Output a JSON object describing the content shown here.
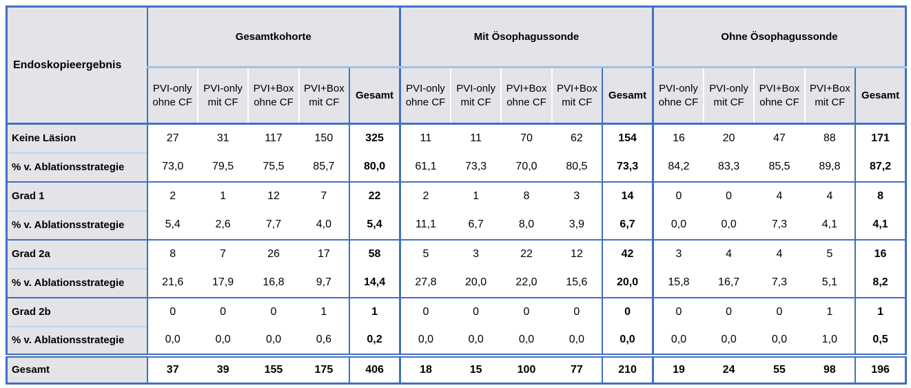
{
  "table": {
    "corner_label": "Endoskopieergebnis",
    "groups": [
      {
        "label": "Gesamtkohorte"
      },
      {
        "label": "Mit Ösophagussonde"
      },
      {
        "label": "Ohne Ösophagussonde"
      }
    ],
    "sub_headers": [
      "PVI-only ohne CF",
      "PVI-only mit CF",
      "PVI+Box ohne CF",
      "PVI+Box mit CF",
      "Gesamt"
    ],
    "rows": [
      {
        "label": "Keine Läsion",
        "type": "count",
        "values": [
          "27",
          "31",
          "117",
          "150",
          "325",
          "11",
          "11",
          "70",
          "62",
          "154",
          "16",
          "20",
          "47",
          "88",
          "171"
        ]
      },
      {
        "label": "% v. Ablationsstrategie",
        "type": "percent",
        "values": [
          "73,0",
          "79,5",
          "75,5",
          "85,7",
          "80,0",
          "61,1",
          "73,3",
          "70,0",
          "80,5",
          "73,3",
          "84,2",
          "83,3",
          "85,5",
          "89,8",
          "87,2"
        ]
      },
      {
        "label": "Grad 1",
        "type": "count",
        "values": [
          "2",
          "1",
          "12",
          "7",
          "22",
          "2",
          "1",
          "8",
          "3",
          "14",
          "0",
          "0",
          "4",
          "4",
          "8"
        ]
      },
      {
        "label": "% v. Ablationsstrategie",
        "type": "percent",
        "values": [
          "5,4",
          "2,6",
          "7,7",
          "4,0",
          "5,4",
          "11,1",
          "6,7",
          "8,0",
          "3,9",
          "6,7",
          "0,0",
          "0,0",
          "7,3",
          "4,1",
          "4,1"
        ]
      },
      {
        "label": "Grad 2a",
        "type": "count",
        "values": [
          "8",
          "7",
          "26",
          "17",
          "58",
          "5",
          "3",
          "22",
          "12",
          "42",
          "3",
          "4",
          "4",
          "5",
          "16"
        ]
      },
      {
        "label": "% v. Ablationsstrategie",
        "type": "percent",
        "values": [
          "21,6",
          "17,9",
          "16,8",
          "9,7",
          "14,4",
          "27,8",
          "20,0",
          "22,0",
          "15,6",
          "20,0",
          "15,8",
          "16,7",
          "7,3",
          "5,1",
          "8,2"
        ]
      },
      {
        "label": "Grad 2b",
        "type": "count",
        "values": [
          "0",
          "0",
          "0",
          "1",
          "1",
          "0",
          "0",
          "0",
          "0",
          "0",
          "0",
          "0",
          "0",
          "1",
          "1"
        ]
      },
      {
        "label": "% v. Ablationsstrategie",
        "type": "percent",
        "values": [
          "0,0",
          "0,0",
          "0,0",
          "0,6",
          "0,2",
          "0,0",
          "0,0",
          "0,0",
          "0,0",
          "0,0",
          "0,0",
          "0,0",
          "0,0",
          "1,0",
          "0,5"
        ]
      },
      {
        "label": "Gesamt",
        "type": "total",
        "values": [
          "37",
          "39",
          "155",
          "175",
          "406",
          "18",
          "15",
          "100",
          "77",
          "210",
          "19",
          "24",
          "55",
          "98",
          "196"
        ]
      }
    ],
    "colors": {
      "border_dark_blue": "#4170c0",
      "border_light_blue": "#9dc3e6",
      "label_separator_blue": "#bdd7ee",
      "header_fill_gray": "#e3e3e8"
    }
  }
}
